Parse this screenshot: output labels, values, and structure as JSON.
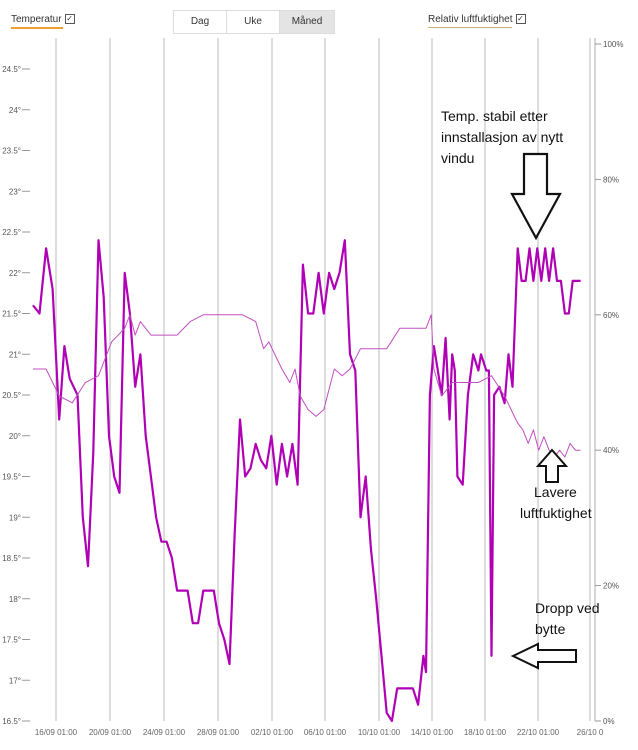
{
  "legend": {
    "temperature_label": "Temperatur",
    "humidity_label": "Relativ luftfuktighet",
    "checkbox_glyph": "✓"
  },
  "tabs": [
    {
      "label": "Dag"
    },
    {
      "label": "Uke"
    },
    {
      "label": "Måned",
      "active": true
    }
  ],
  "annotations": {
    "stable_line1": "Temp. stabil etter",
    "stable_line2": "innstallasjon av nytt",
    "stable_line3": "vindu",
    "humidity_line1": "Lavere",
    "humidity_line2": "luftfuktighet",
    "drop_line1": "Dropp ved",
    "drop_line2": "bytte"
  },
  "colors": {
    "temperature": "#b000b5",
    "humidity": "#c050c0",
    "legend_temp": "#f0a030",
    "legend_hum": "#d0b070"
  },
  "chart_data": {
    "type": "line",
    "ylabel_left": "",
    "ylabel_right": "",
    "ylim_left": [
      16.5,
      24.8
    ],
    "ylim_right": [
      0,
      100
    ],
    "y_ticks_left": [
      "24.5°",
      "24°",
      "23.5°",
      "23°",
      "22.5°",
      "22°",
      "21.5°",
      "21°",
      "20.5°",
      "20°",
      "19.5°",
      "19°",
      "18.5°",
      "18°",
      "17.5°",
      "17°",
      "16.5°"
    ],
    "y_ticks_right": [
      "100%",
      "80%",
      "60%",
      "40%",
      "20%",
      "0%"
    ],
    "x_ticks": [
      "16/09 01:00",
      "20/09 01:00",
      "24/09 01:00",
      "28/09 01:00",
      "02/10 01:00",
      "06/10 01:00",
      "10/10 01:00",
      "14/10 01:00",
      "18/10 01:00",
      "22/10 01:00",
      "26/10 0"
    ],
    "x_range_days": [
      0,
      42
    ],
    "series": [
      {
        "name": "Temperatur",
        "axis": "left",
        "points": [
          [
            0,
            21.6
          ],
          [
            0.5,
            21.5
          ],
          [
            1,
            22.3
          ],
          [
            1.5,
            21.8
          ],
          [
            2,
            20.2
          ],
          [
            2.4,
            21.1
          ],
          [
            2.8,
            20.7
          ],
          [
            3.1,
            20.6
          ],
          [
            3.4,
            20.5
          ],
          [
            3.8,
            19.0
          ],
          [
            4.2,
            18.4
          ],
          [
            4.6,
            19.8
          ],
          [
            5.0,
            22.4
          ],
          [
            5.4,
            21.7
          ],
          [
            5.8,
            20.0
          ],
          [
            6.2,
            19.5
          ],
          [
            6.6,
            19.3
          ],
          [
            7.0,
            22.0
          ],
          [
            7.4,
            21.5
          ],
          [
            7.8,
            20.6
          ],
          [
            8.2,
            21.0
          ],
          [
            8.6,
            20.0
          ],
          [
            9.0,
            19.5
          ],
          [
            9.4,
            19.0
          ],
          [
            9.8,
            18.7
          ],
          [
            10.2,
            18.7
          ],
          [
            10.6,
            18.5
          ],
          [
            11.0,
            18.1
          ],
          [
            11.4,
            18.1
          ],
          [
            11.8,
            18.1
          ],
          [
            12.2,
            17.7
          ],
          [
            12.6,
            17.7
          ],
          [
            13.0,
            18.1
          ],
          [
            13.4,
            18.1
          ],
          [
            13.8,
            18.1
          ],
          [
            14.2,
            17.7
          ],
          [
            14.6,
            17.5
          ],
          [
            15.0,
            17.2
          ],
          [
            15.4,
            18.8
          ],
          [
            15.8,
            20.2
          ],
          [
            16.2,
            19.5
          ],
          [
            16.6,
            19.6
          ],
          [
            17.0,
            19.9
          ],
          [
            17.4,
            19.7
          ],
          [
            17.8,
            19.6
          ],
          [
            18.2,
            20.0
          ],
          [
            18.6,
            19.4
          ],
          [
            19.0,
            19.9
          ],
          [
            19.4,
            19.5
          ],
          [
            19.8,
            19.9
          ],
          [
            20.2,
            19.4
          ],
          [
            20.6,
            22.1
          ],
          [
            21.0,
            21.5
          ],
          [
            21.4,
            21.5
          ],
          [
            21.8,
            22.0
          ],
          [
            22.2,
            21.5
          ],
          [
            22.6,
            22.0
          ],
          [
            23.0,
            21.8
          ],
          [
            23.4,
            22.0
          ],
          [
            23.8,
            22.4
          ],
          [
            24.2,
            21.0
          ],
          [
            24.6,
            20.8
          ],
          [
            25.0,
            19.0
          ],
          [
            25.4,
            19.5
          ],
          [
            25.8,
            18.6
          ],
          [
            26.2,
            18.0
          ],
          [
            26.6,
            17.3
          ],
          [
            27.0,
            16.6
          ],
          [
            27.4,
            16.5
          ],
          [
            27.8,
            16.9
          ],
          [
            28.2,
            16.9
          ],
          [
            28.6,
            16.9
          ],
          [
            29.0,
            16.9
          ],
          [
            29.4,
            16.7
          ],
          [
            29.8,
            17.3
          ],
          [
            30.0,
            17.1
          ],
          [
            30.3,
            20.5
          ],
          [
            30.6,
            21.1
          ],
          [
            30.9,
            20.8
          ],
          [
            31.2,
            20.5
          ],
          [
            31.5,
            21.2
          ],
          [
            31.8,
            20.2
          ],
          [
            32.0,
            21.0
          ],
          [
            32.2,
            20.8
          ],
          [
            32.4,
            19.5
          ],
          [
            32.8,
            19.4
          ],
          [
            33.2,
            20.5
          ],
          [
            33.6,
            21.0
          ],
          [
            34.0,
            20.8
          ],
          [
            34.2,
            21.0
          ],
          [
            34.6,
            20.8
          ],
          [
            34.8,
            20.8
          ],
          [
            35.0,
            17.3
          ],
          [
            35.2,
            20.5
          ],
          [
            35.6,
            20.6
          ],
          [
            36.0,
            20.4
          ],
          [
            36.3,
            21.0
          ],
          [
            36.6,
            20.6
          ],
          [
            37.0,
            22.3
          ],
          [
            37.3,
            21.9
          ],
          [
            37.6,
            21.9
          ],
          [
            37.9,
            22.3
          ],
          [
            38.2,
            21.9
          ],
          [
            38.5,
            22.3
          ],
          [
            38.8,
            21.9
          ],
          [
            39.1,
            22.3
          ],
          [
            39.4,
            21.9
          ],
          [
            39.7,
            22.3
          ],
          [
            40.0,
            21.9
          ],
          [
            40.3,
            21.9
          ],
          [
            40.6,
            21.5
          ],
          [
            40.9,
            21.5
          ],
          [
            41.2,
            21.9
          ],
          [
            41.5,
            21.9
          ],
          [
            41.8,
            21.9
          ]
        ]
      },
      {
        "name": "Relativ luftfuktighet",
        "axis": "right",
        "points": [
          [
            0,
            52
          ],
          [
            1,
            52
          ],
          [
            2,
            48
          ],
          [
            3,
            47
          ],
          [
            4,
            50
          ],
          [
            5,
            51
          ],
          [
            6,
            56
          ],
          [
            7,
            58
          ],
          [
            7.4,
            60
          ],
          [
            7.8,
            57
          ],
          [
            8.2,
            59
          ],
          [
            9,
            57
          ],
          [
            10,
            57
          ],
          [
            11,
            57
          ],
          [
            12,
            59
          ],
          [
            13,
            60
          ],
          [
            14,
            60
          ],
          [
            15,
            60
          ],
          [
            16,
            60
          ],
          [
            17,
            59
          ],
          [
            17.6,
            55
          ],
          [
            18,
            56
          ],
          [
            19,
            52
          ],
          [
            19.6,
            50
          ],
          [
            20,
            52
          ],
          [
            20.4,
            48
          ],
          [
            21,
            46
          ],
          [
            21.6,
            45
          ],
          [
            22.2,
            46
          ],
          [
            23,
            52
          ],
          [
            23.6,
            51
          ],
          [
            24.2,
            52
          ],
          [
            25,
            55
          ],
          [
            26,
            55
          ],
          [
            27,
            55
          ],
          [
            28,
            58
          ],
          [
            29,
            58
          ],
          [
            30,
            58
          ],
          [
            30.4,
            60
          ],
          [
            30.6,
            52
          ],
          [
            31.2,
            48
          ],
          [
            32,
            50
          ],
          [
            33,
            50
          ],
          [
            34,
            50
          ],
          [
            35,
            51
          ],
          [
            36,
            48
          ],
          [
            36.5,
            46
          ],
          [
            37,
            44
          ],
          [
            37.4,
            43
          ],
          [
            37.8,
            41
          ],
          [
            38.2,
            43
          ],
          [
            38.6,
            40
          ],
          [
            39.0,
            42
          ],
          [
            39.4,
            40
          ],
          [
            39.8,
            39
          ],
          [
            40.2,
            40
          ],
          [
            40.6,
            39
          ],
          [
            41.0,
            41
          ],
          [
            41.4,
            40
          ],
          [
            41.8,
            40
          ]
        ]
      }
    ]
  }
}
